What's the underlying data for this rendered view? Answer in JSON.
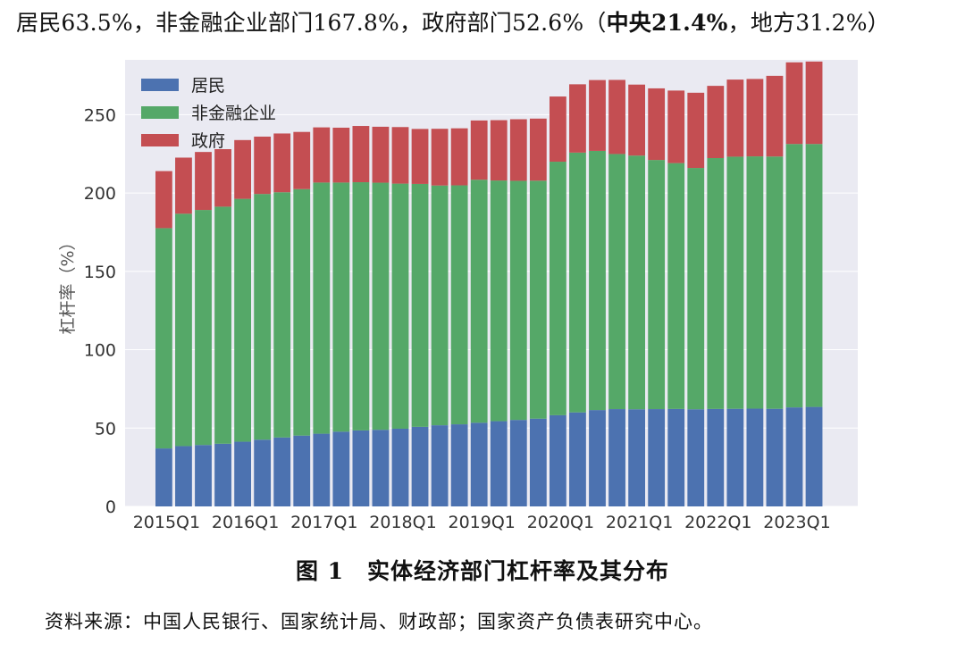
{
  "header": {
    "summary_prefix": "居民63.5%，非金融企业部门167.8%，政府部门52.6%（",
    "summary_central": "中央21.4%",
    "summary_suffix": "，地方31.2%）"
  },
  "figure": {
    "caption": "图 1　实体经济部门杠杆率及其分布",
    "source": "资料来源：中国人民银行、国家统计局、财政部；国家资产负债表研究中心。"
  },
  "colors": {
    "household": "#4c72b0",
    "corporate": "#55a868",
    "government": "#c44e52",
    "plot_bg": "#eaeaf2"
  },
  "chart_data": {
    "type": "bar",
    "stacked": true,
    "ylabel": "杠杆率（%）",
    "ylim": [
      0,
      285
    ],
    "yticks": [
      0,
      50,
      100,
      150,
      200,
      250
    ],
    "xtick_labels": [
      "2015Q1",
      "2016Q1",
      "2017Q1",
      "2018Q1",
      "2019Q1",
      "2020Q1",
      "2021Q1",
      "2022Q1",
      "2023Q1"
    ],
    "categories": [
      "2015Q1",
      "2015Q2",
      "2015Q3",
      "2015Q4",
      "2016Q1",
      "2016Q2",
      "2016Q3",
      "2016Q4",
      "2017Q1",
      "2017Q2",
      "2017Q3",
      "2017Q4",
      "2018Q1",
      "2018Q2",
      "2018Q3",
      "2018Q4",
      "2019Q1",
      "2019Q2",
      "2019Q3",
      "2019Q4",
      "2020Q1",
      "2020Q2",
      "2020Q3",
      "2020Q4",
      "2021Q1",
      "2021Q2",
      "2021Q3",
      "2021Q4",
      "2022Q1",
      "2022Q2",
      "2022Q3",
      "2022Q4",
      "2023Q1",
      "2023Q2"
    ],
    "legend": "top-left",
    "series": [
      {
        "name": "居民",
        "color_key": "household",
        "values": [
          37.0,
          38.5,
          39.2,
          40.0,
          41.3,
          42.6,
          44.0,
          45.2,
          46.4,
          47.7,
          48.5,
          48.9,
          49.6,
          50.8,
          51.8,
          52.4,
          53.4,
          54.4,
          55.2,
          56.0,
          58.2,
          60.0,
          61.5,
          62.1,
          62.0,
          62.1,
          62.2,
          62.0,
          62.2,
          62.3,
          62.4,
          62.3,
          63.2,
          63.5
        ]
      },
      {
        "name": "非金融企业",
        "color_key": "corporate",
        "values": [
          140.6,
          148.3,
          150.0,
          151.3,
          155.0,
          156.8,
          156.5,
          157.3,
          160.3,
          159.0,
          158.4,
          157.7,
          156.4,
          155.0,
          153.0,
          152.5,
          155.1,
          153.6,
          152.6,
          151.9,
          161.8,
          165.8,
          165.4,
          162.8,
          161.9,
          159.0,
          156.9,
          154.0,
          160.1,
          160.9,
          161.0,
          161.0,
          168.1,
          167.8
        ]
      },
      {
        "name": "政府",
        "color_key": "government",
        "values": [
          36.4,
          35.8,
          37.0,
          36.7,
          37.5,
          36.6,
          37.5,
          36.5,
          35.2,
          35.0,
          35.9,
          35.7,
          36.1,
          35.1,
          36.2,
          36.4,
          37.8,
          38.5,
          39.3,
          39.6,
          41.6,
          43.6,
          45.2,
          47.3,
          45.3,
          45.7,
          46.3,
          48.0,
          46.1,
          49.2,
          49.4,
          51.5,
          52.1,
          52.6
        ]
      }
    ]
  }
}
